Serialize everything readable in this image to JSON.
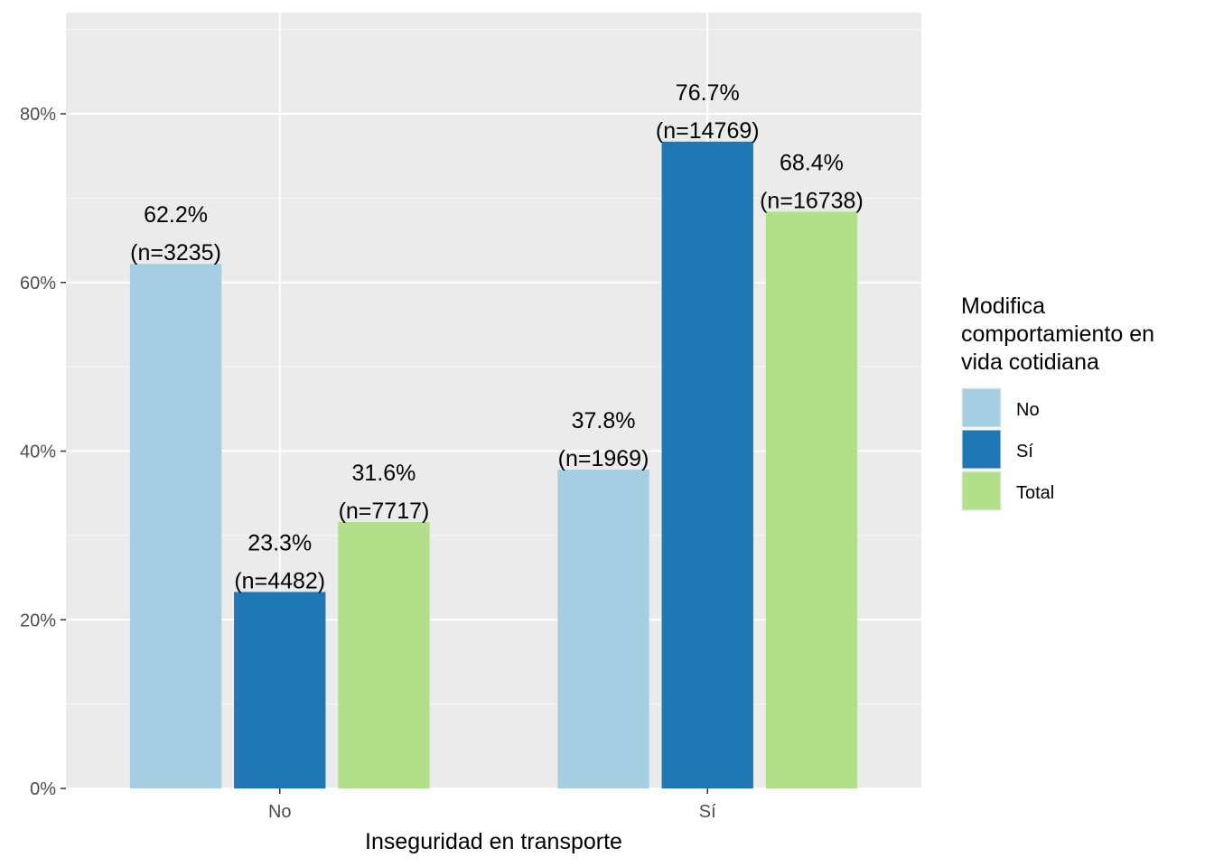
{
  "chart_data": {
    "type": "bar",
    "xlabel": "Inseguridad en transporte",
    "ylabel": "",
    "categories": [
      "No",
      "Sí"
    ],
    "ylim": [
      0,
      0.92
    ],
    "yticks": [
      0,
      0.2,
      0.4,
      0.6,
      0.8
    ],
    "ytick_labels": [
      "0%",
      "20%",
      "40%",
      "60%",
      "80%"
    ],
    "grid": true,
    "legend": {
      "title_lines": [
        "Modifica",
        "comportamiento en",
        "vida cotidiana"
      ],
      "position": "right"
    },
    "series": [
      {
        "name": "No",
        "color": "#a6cee3",
        "values": [
          0.622,
          0.378
        ],
        "labels": [
          [
            "62.2%",
            "(n=3235)"
          ],
          [
            "37.8%",
            "(n=1969)"
          ]
        ]
      },
      {
        "name": "Sí",
        "color": "#1f78b4",
        "values": [
          0.233,
          0.767
        ],
        "labels": [
          [
            "23.3%",
            "(n=4482)"
          ],
          [
            "76.7%",
            "(n=14769)"
          ]
        ]
      },
      {
        "name": "Total",
        "color": "#b2df8a",
        "values": [
          0.316,
          0.684
        ],
        "labels": [
          [
            "31.6%",
            "(n=7717)"
          ],
          [
            "68.4%",
            "(n=16738)"
          ]
        ]
      }
    ]
  }
}
